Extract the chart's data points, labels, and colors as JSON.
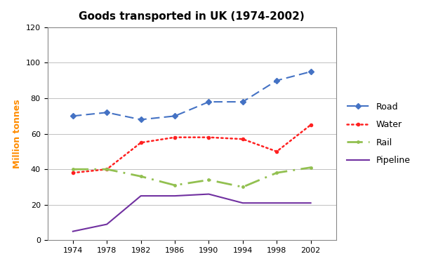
{
  "title": "Goods transported in UK (1974-2002)",
  "ylabel": "Million tonnes",
  "years": [
    1974,
    1978,
    1982,
    1986,
    1990,
    1994,
    1998,
    2002
  ],
  "road": [
    70,
    72,
    68,
    70,
    78,
    78,
    90,
    95
  ],
  "water": [
    38,
    40,
    55,
    58,
    58,
    57,
    50,
    65
  ],
  "rail": [
    40,
    40,
    36,
    31,
    34,
    30,
    38,
    41
  ],
  "pipeline": [
    5,
    9,
    25,
    25,
    26,
    21,
    21,
    21
  ],
  "road_color": "#4472C4",
  "water_color": "#FF2020",
  "rail_color": "#92C050",
  "pipeline_color": "#7030A0",
  "road_label": "Road",
  "water_label": "Water",
  "rail_label": "Rail",
  "pipeline_label": "Pipeline",
  "ylim": [
    0,
    120
  ],
  "yticks": [
    0,
    20,
    40,
    60,
    80,
    100,
    120
  ],
  "bg_color": "#FFFFFF",
  "plot_bg_color": "#FFFFFF",
  "title_fontsize": 11,
  "label_fontsize": 9,
  "legend_fontsize": 9,
  "tick_fontsize": 8
}
